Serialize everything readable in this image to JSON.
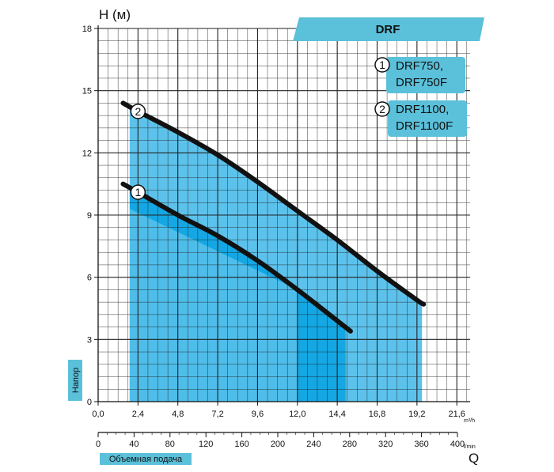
{
  "chart_data": {
    "type": "line",
    "title": "DRF",
    "ylabel": "H (м)",
    "ylabel_side": "Напор",
    "xlabel": "Q",
    "xlabel_bottom": "Объемная подача",
    "x_unit_top": "m³/h",
    "x_unit_bottom": "l/min",
    "xlim": [
      0,
      22.4
    ],
    "ylim": [
      0,
      18
    ],
    "x_ticks": [
      "0,0",
      "2,4",
      "4,8",
      "7,2",
      "9,6",
      "12,0",
      "14,4",
      "16,8",
      "19,2",
      "21,6"
    ],
    "x_tick_values": [
      0,
      2.4,
      4.8,
      7.2,
      9.6,
      12.0,
      14.4,
      16.8,
      19.2,
      21.6
    ],
    "x2_ticks": [
      "0",
      "40",
      "80",
      "120",
      "160",
      "200",
      "240",
      "280",
      "320",
      "360",
      "400"
    ],
    "y_ticks": [
      "0",
      "3",
      "6",
      "9",
      "12",
      "15",
      "18"
    ],
    "y_tick_values": [
      0,
      3,
      6,
      9,
      12,
      15,
      18
    ],
    "grid": true,
    "legend": [
      {
        "marker": "1",
        "line1": "DRF750,",
        "line2": "DRF750F"
      },
      {
        "marker": "2",
        "line1": "DRF1100,",
        "line2": "DRF1100F"
      }
    ],
    "colors": {
      "light_fill": "#c7e7f6",
      "mid_fill": "#5cc2ec",
      "dark_fill": "#14a7e3",
      "banner": "#5bc0da",
      "legend_box": "#5bc0da",
      "curve": "#111111",
      "grid": "#222222"
    },
    "series": [
      {
        "name": "1",
        "x": [
          1.5,
          2.4,
          4.8,
          7.2,
          9.6,
          12.0,
          14.4,
          15.2
        ],
        "y": [
          10.5,
          10.1,
          9.0,
          8.0,
          6.8,
          5.4,
          3.9,
          3.4
        ]
      },
      {
        "name": "2",
        "x": [
          1.5,
          2.4,
          4.8,
          7.2,
          9.6,
          12.0,
          14.4,
          16.8,
          19.2,
          19.6
        ],
        "y": [
          14.4,
          14.0,
          13.0,
          11.9,
          10.6,
          9.2,
          7.8,
          6.3,
          4.9,
          4.7
        ]
      }
    ],
    "ranges": {
      "light_x": [
        1.9,
        19.5
      ],
      "dark_x": [
        1.9,
        14.9
      ],
      "mid_x": [
        1.9,
        19.5
      ]
    }
  }
}
